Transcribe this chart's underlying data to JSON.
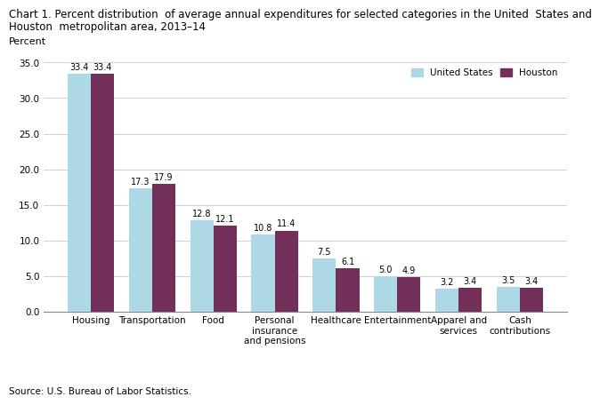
{
  "title_line1": "Chart 1. Percent distribution  of average annual expenditures for selected categories in the United  States and",
  "title_line2": "Houston  metropolitan area, 2013–14",
  "ylabel": "Percent",
  "categories": [
    "Housing",
    "Transportation",
    "Food",
    "Personal\ninsurance\nand pensions",
    "Healthcare",
    "Entertainment",
    "Apparel and\nservices",
    "Cash\ncontributions"
  ],
  "us_values": [
    33.4,
    17.3,
    12.8,
    10.8,
    7.5,
    5.0,
    3.2,
    3.5
  ],
  "houston_values": [
    33.4,
    17.9,
    12.1,
    11.4,
    6.1,
    4.9,
    3.4,
    3.4
  ],
  "us_color": "#ADD8E6",
  "houston_color": "#722F5A",
  "us_label": "United States",
  "houston_label": "Houston",
  "ylim": [
    0,
    35.5
  ],
  "yticks": [
    0.0,
    5.0,
    10.0,
    15.0,
    20.0,
    25.0,
    30.0,
    35.0
  ],
  "source": "Source: U.S. Bureau of Labor Statistics.",
  "bar_width": 0.38,
  "title_fontsize": 8.5,
  "tick_fontsize": 7.5,
  "label_fontsize": 8,
  "value_fontsize": 7
}
